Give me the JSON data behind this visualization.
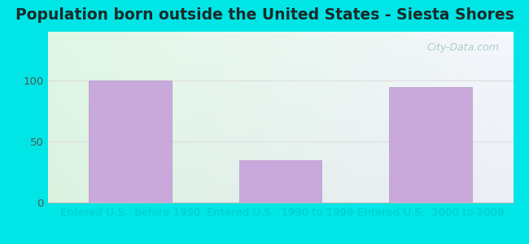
{
  "title": "Population born outside the United States - Siesta Shores",
  "categories": [
    "Entered U.S.  before 1990",
    "Entered U.S.  1990 to 1999",
    "Entered U.S.  2000 to 2009"
  ],
  "values": [
    100,
    35,
    95
  ],
  "bar_color": "#c9a8dc",
  "bar_edge_color": "#b898cc",
  "yticks": [
    0,
    50,
    100
  ],
  "ytick_color": "#555555",
  "xlabel_color": "#00cccc",
  "title_color": "#1a2a2a",
  "background_outer": "#00e5e5",
  "grid_color": "#dddddd",
  "watermark": "City-Data.com",
  "title_fontsize": 13.5,
  "tick_label_fontsize": 9.5,
  "xlabel_fontsize": 9.5,
  "ylim_max": 140,
  "bar_width": 0.55
}
